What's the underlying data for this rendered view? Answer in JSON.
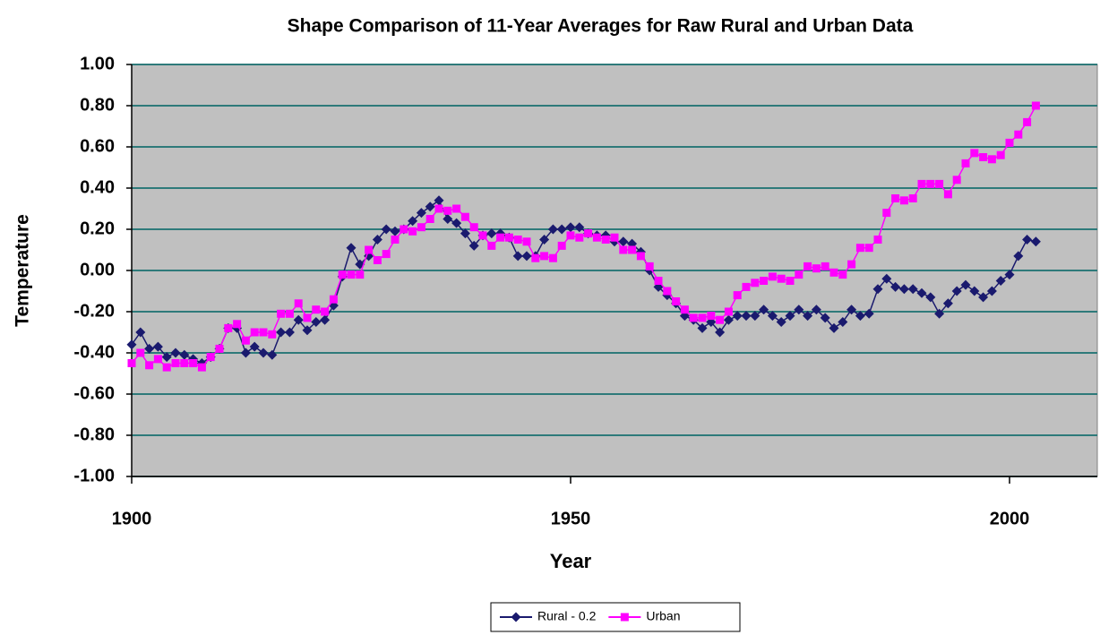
{
  "chart_data": {
    "type": "line",
    "title": "Shape Comparison of 11-Year Averages for Raw Rural and Urban Data",
    "x_label": "Year",
    "y_label": "Temperature",
    "x": [
      1900,
      1901,
      1902,
      1903,
      1904,
      1905,
      1906,
      1907,
      1908,
      1909,
      1910,
      1911,
      1912,
      1913,
      1914,
      1915,
      1916,
      1917,
      1918,
      1919,
      1920,
      1921,
      1922,
      1923,
      1924,
      1925,
      1926,
      1927,
      1928,
      1929,
      1930,
      1931,
      1932,
      1933,
      1934,
      1935,
      1936,
      1937,
      1938,
      1939,
      1940,
      1941,
      1942,
      1943,
      1944,
      1945,
      1946,
      1947,
      1948,
      1949,
      1950,
      1951,
      1952,
      1953,
      1954,
      1955,
      1956,
      1957,
      1958,
      1959,
      1960,
      1961,
      1962,
      1963,
      1964,
      1965,
      1966,
      1967,
      1968,
      1969,
      1970,
      1971,
      1972,
      1973,
      1974,
      1975,
      1976,
      1977,
      1978,
      1979,
      1980,
      1981,
      1982,
      1983,
      1984,
      1985,
      1986,
      1987,
      1988,
      1989,
      1990,
      1991,
      1992,
      1993,
      1994,
      1995,
      1996,
      1997,
      1998,
      1999,
      2000,
      2001,
      2002,
      2003
    ],
    "series": [
      {
        "name": "Rural - 0.2",
        "color": "#1a1a6e",
        "marker": "diamond",
        "values": [
          -0.36,
          -0.3,
          -0.38,
          -0.37,
          -0.42,
          -0.4,
          -0.41,
          -0.43,
          -0.45,
          -0.42,
          -0.38,
          -0.28,
          -0.28,
          -0.4,
          -0.37,
          -0.4,
          -0.41,
          -0.3,
          -0.3,
          -0.24,
          -0.29,
          -0.25,
          -0.24,
          -0.17,
          -0.03,
          0.11,
          0.03,
          0.07,
          0.15,
          0.2,
          0.19,
          0.2,
          0.24,
          0.28,
          0.31,
          0.34,
          0.25,
          0.23,
          0.18,
          0.12,
          0.17,
          0.18,
          0.18,
          0.16,
          0.07,
          0.07,
          0.07,
          0.15,
          0.2,
          0.2,
          0.21,
          0.21,
          0.18,
          0.17,
          0.17,
          0.14,
          0.14,
          0.13,
          0.09,
          0.0,
          -0.08,
          -0.12,
          -0.16,
          -0.22,
          -0.24,
          -0.28,
          -0.25,
          -0.3,
          -0.24,
          -0.22,
          -0.22,
          -0.22,
          -0.19,
          -0.22,
          -0.25,
          -0.22,
          -0.19,
          -0.22,
          -0.19,
          -0.23,
          -0.28,
          -0.25,
          -0.19,
          -0.22,
          -0.21,
          -0.09,
          -0.04,
          -0.08,
          -0.09,
          -0.09,
          -0.11,
          -0.13,
          -0.21,
          -0.16,
          -0.1,
          -0.07,
          -0.1,
          -0.13,
          -0.1,
          -0.05,
          -0.02,
          0.07,
          0.15,
          0.14
        ]
      },
      {
        "name": "Urban",
        "color": "#ff00ff",
        "marker": "square",
        "values": [
          -0.45,
          -0.4,
          -0.46,
          -0.43,
          -0.47,
          -0.45,
          -0.45,
          -0.45,
          -0.47,
          -0.42,
          -0.38,
          -0.28,
          -0.26,
          -0.34,
          -0.3,
          -0.3,
          -0.31,
          -0.21,
          -0.21,
          -0.16,
          -0.23,
          -0.19,
          -0.2,
          -0.14,
          -0.02,
          -0.02,
          -0.02,
          0.1,
          0.05,
          0.08,
          0.15,
          0.2,
          0.19,
          0.21,
          0.25,
          0.3,
          0.29,
          0.3,
          0.26,
          0.21,
          0.17,
          0.12,
          0.16,
          0.16,
          0.15,
          0.14,
          0.06,
          0.07,
          0.06,
          0.12,
          0.17,
          0.16,
          0.18,
          0.16,
          0.15,
          0.16,
          0.1,
          0.1,
          0.07,
          0.02,
          -0.05,
          -0.1,
          -0.15,
          -0.19,
          -0.23,
          -0.23,
          -0.22,
          -0.24,
          -0.2,
          -0.12,
          -0.08,
          -0.06,
          -0.05,
          -0.03,
          -0.04,
          -0.05,
          -0.02,
          0.02,
          0.01,
          0.02,
          -0.01,
          -0.02,
          0.03,
          0.11,
          0.11,
          0.15,
          0.28,
          0.35,
          0.34,
          0.35,
          0.42,
          0.42,
          0.42,
          0.37,
          0.44,
          0.52,
          0.57,
          0.55,
          0.54,
          0.56,
          0.62,
          0.66,
          0.72,
          0.8
        ]
      }
    ],
    "xlim": [
      1900,
      2010
    ],
    "xticks": [
      1900,
      1950,
      2000
    ],
    "ylim": [
      -1,
      1
    ],
    "yticks": [
      {
        "value": -1,
        "label": "-1.00"
      },
      {
        "value": -0.8,
        "label": "-0.80"
      },
      {
        "value": -0.6,
        "label": "-0.60"
      },
      {
        "value": -0.4,
        "label": "-0.40"
      },
      {
        "value": -0.2,
        "label": "-0.20"
      },
      {
        "value": 0,
        "label": "0.00"
      },
      {
        "value": 0.2,
        "label": "0.20"
      },
      {
        "value": 0.4,
        "label": "0.40"
      },
      {
        "value": 0.6,
        "label": "0.60"
      },
      {
        "value": 0.8,
        "label": "0.80"
      },
      {
        "value": 1,
        "label": "1.00"
      }
    ],
    "grid": true,
    "legend": "bottom"
  }
}
